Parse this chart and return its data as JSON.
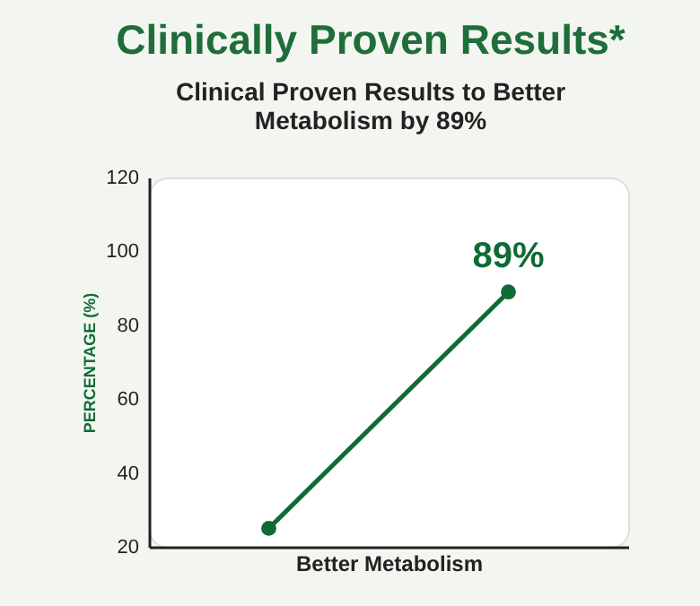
{
  "chart_data": {
    "type": "line",
    "title": "Clinically Proven Results*",
    "subtitle": "Clinical Proven Results to Better Metabolism by 89%",
    "xlabel": "Better Metabolism",
    "ylabel": "PERCENTAGE (%)",
    "categories": [
      null,
      null
    ],
    "series": [
      {
        "color": "#0f6b35",
        "values": [
          25,
          89
        ]
      }
    ],
    "ylim": [
      20,
      120
    ],
    "yticks": [
      20,
      40,
      60,
      80,
      100,
      120
    ],
    "annotations": [
      {
        "text": "89%",
        "y": 89
      }
    ],
    "grid": false,
    "marker": "circle",
    "line_style": "solid"
  }
}
